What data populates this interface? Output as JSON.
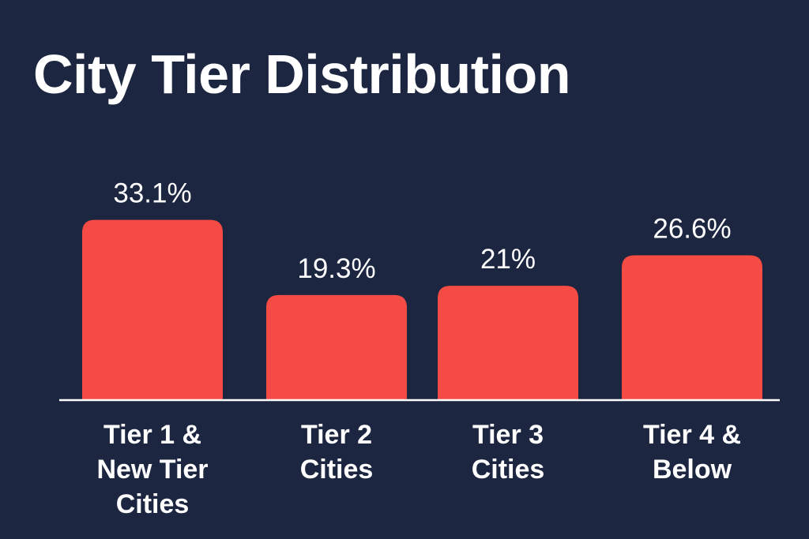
{
  "chart_data": {
    "type": "bar",
    "title": "City Tier Distribution",
    "categories": [
      [
        "Tier 1 &",
        "New Tier",
        "Cities"
      ],
      [
        "Tier 2",
        "Cities"
      ],
      [
        "Tier 3",
        "Cities"
      ],
      [
        "Tier 4 &",
        "Below"
      ]
    ],
    "values": [
      33.1,
      19.3,
      21,
      26.6
    ],
    "value_labels": [
      "33.1%",
      "19.3%",
      "21%",
      "26.6%"
    ],
    "unit": "%",
    "ylim": [
      0,
      40
    ],
    "grid": false,
    "legend": "none",
    "colors": {
      "background": "#1d2640",
      "bar": "#f44c44",
      "axis": "#ffffff",
      "text": "#ffffff"
    }
  }
}
